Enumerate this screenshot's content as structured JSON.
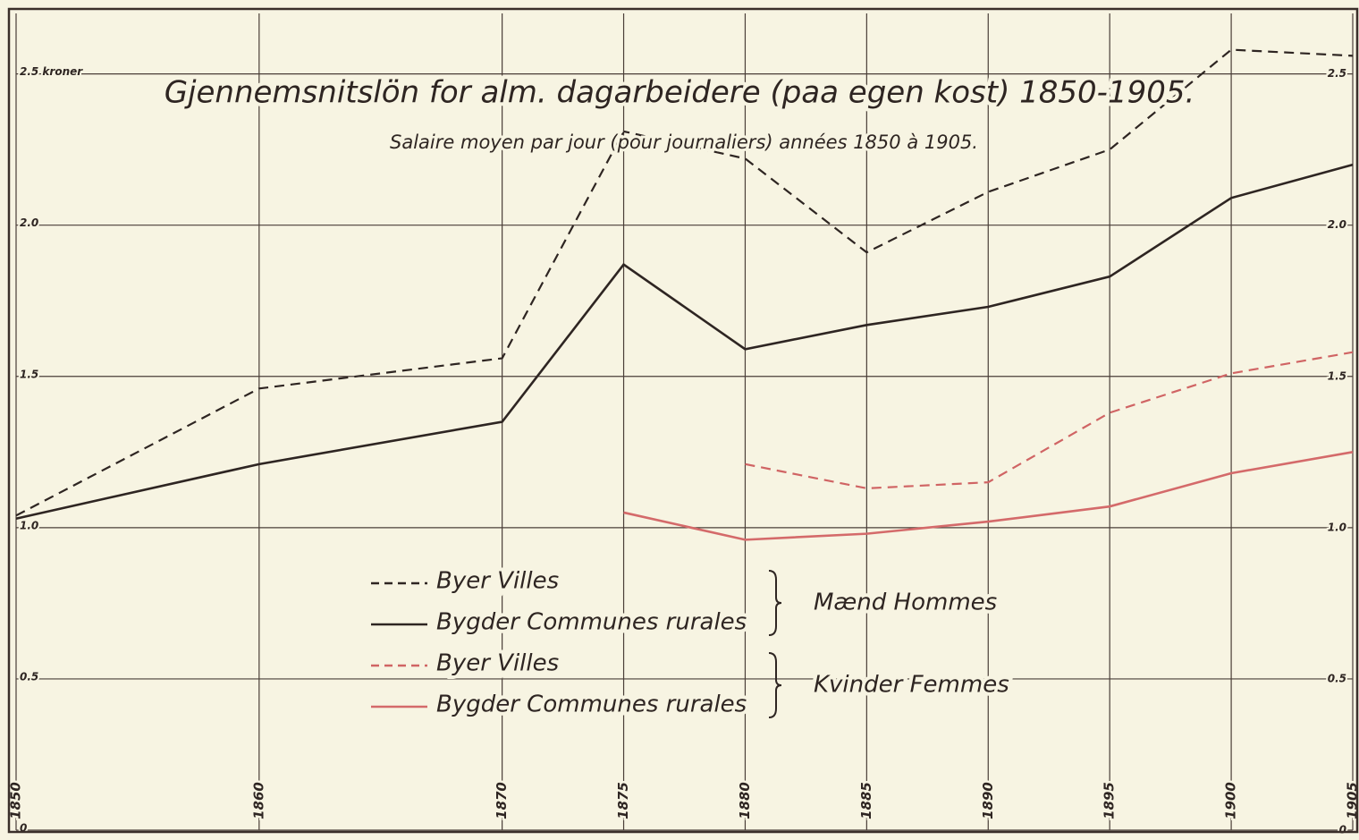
{
  "chart_data": {
    "type": "line",
    "title": "Gjennemsnitslön for alm. dagarbeidere (paa egen kost) 1850-1905.",
    "subtitle": "Salaire moyen par jour (pour journaliers) années 1850 à 1905.",
    "x": [
      1850,
      1860,
      1870,
      1875,
      1880,
      1885,
      1890,
      1895,
      1900,
      1905
    ],
    "xlim": [
      1850,
      1905
    ],
    "xticks": [
      1850,
      1860,
      1870,
      1875,
      1880,
      1885,
      1890,
      1895,
      1900,
      1905
    ],
    "ylim": [
      0,
      2.7
    ],
    "yticks": [
      0,
      {
        "value": 0.5,
        "label": "0.5"
      },
      {
        "value": 1,
        "label": "1.0"
      },
      {
        "value": 1.5,
        "label": "1.5"
      },
      {
        "value": 2,
        "label": "2.0"
      },
      {
        "value": 2.5,
        "label": "2.5 kroner"
      }
    ],
    "y2lim": [
      0,
      2.7
    ],
    "y2ticks": [
      0,
      {
        "value": 0.5,
        "label": "0.5"
      },
      {
        "value": 1,
        "label": "1.0"
      },
      {
        "value": 1.5,
        "label": "1.5"
      },
      {
        "value": 2,
        "label": "2.0"
      },
      {
        "value": 2.5,
        "label": "2.5"
      }
    ],
    "grid": true,
    "series": [
      {
        "name": "Byer Villes",
        "color": "#2e2522",
        "dashed": true,
        "values": [
          1.04,
          1.46,
          1.56,
          2.31,
          2.22,
          1.91,
          2.11,
          2.25,
          2.58,
          2.56
        ]
      },
      {
        "name": "Bygder Communes rurales",
        "color": "#2e2522",
        "dashed": false,
        "values": [
          1.03,
          1.21,
          1.35,
          1.87,
          1.59,
          1.67,
          1.73,
          1.83,
          2.09,
          2.2
        ]
      },
      {
        "name": "Byer Villes",
        "color": "#d06464",
        "dashed": true,
        "values": [
          null,
          null,
          null,
          null,
          1.21,
          1.13,
          1.15,
          1.38,
          1.51,
          1.58
        ]
      },
      {
        "name": "Bygder Communes rurales",
        "color": "#d46a6a",
        "dashed": false,
        "values": [
          null,
          null,
          null,
          1.05,
          0.96,
          0.98,
          1.02,
          1.07,
          1.18,
          1.25
        ]
      }
    ],
    "legend_groups": [
      "Mænd Hommes",
      "Kvinder Femmes"
    ]
  }
}
